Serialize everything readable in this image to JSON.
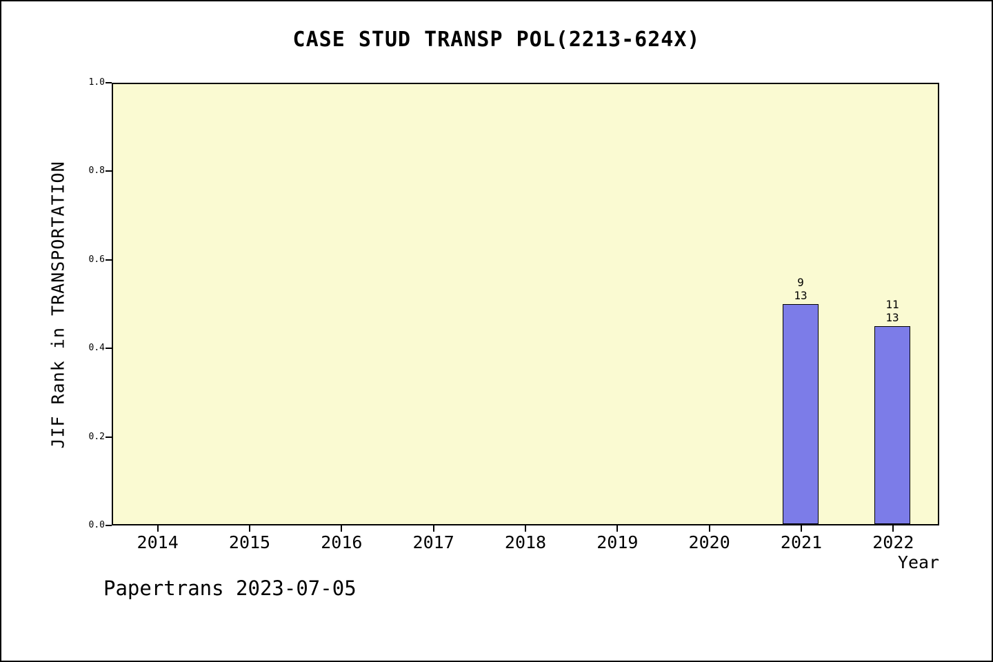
{
  "chart_data": {
    "type": "bar",
    "title": "CASE STUD TRANSP POL(2213-624X)",
    "xlabel": "Year",
    "ylabel": "JIF Rank in TRANSPORTATION",
    "categories": [
      "2014",
      "2015",
      "2016",
      "2017",
      "2018",
      "2019",
      "2020",
      "2021",
      "2022"
    ],
    "values": [
      null,
      null,
      null,
      null,
      null,
      null,
      null,
      0.5,
      0.45
    ],
    "annotations": [
      {
        "category": "2021",
        "rank": "9",
        "total": "13"
      },
      {
        "category": "2022",
        "rank": "11",
        "total": "13"
      }
    ],
    "ylim": [
      0,
      1
    ],
    "ytick_labels": [
      "0.0",
      "0.2",
      "0.4",
      "0.6",
      "0.8",
      "1.0"
    ],
    "grid": false,
    "legend": null,
    "bar_color": "#7c7ce8",
    "plot_background": "#fafad2"
  },
  "footer": {
    "text": "Papertrans 2023-07-05"
  }
}
